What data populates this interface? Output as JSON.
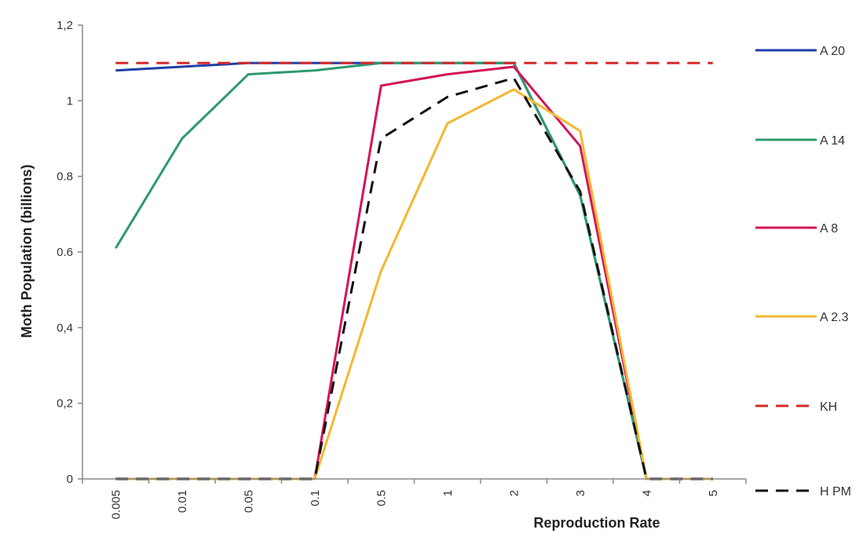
{
  "chart_data": {
    "type": "line",
    "title": "",
    "xlabel": "Reproduction Rate",
    "ylabel": "Moth Population (billions)",
    "categories": [
      "0.005",
      "0.01",
      "0.05",
      "0.1",
      "0.5",
      "1",
      "2",
      "3",
      "4",
      "5"
    ],
    "ylim": [
      0,
      1.2
    ],
    "yticks": [
      "0",
      "0,2",
      "0,4",
      "0.6",
      "0.8",
      "1",
      "1,2"
    ],
    "grid": false,
    "legend_position": "right",
    "series": [
      {
        "name": "A 20",
        "color": "#1f3fa8",
        "dash": "solid",
        "values": [
          1.08,
          1.09,
          1.1,
          1.1,
          1.1,
          1.1,
          1.1,
          0.75,
          0,
          0
        ]
      },
      {
        "name": "A 14",
        "color": "#2e9a6e",
        "dash": "solid",
        "values": [
          0.61,
          0.9,
          1.07,
          1.08,
          1.1,
          1.1,
          1.1,
          0.75,
          0,
          0
        ]
      },
      {
        "name": "A 8",
        "color": "#d4145a",
        "dash": "solid",
        "values": [
          0,
          0,
          0,
          0,
          1.04,
          1.07,
          1.09,
          0.88,
          0,
          0
        ]
      },
      {
        "name": "A 2.3",
        "color": "#f5b731",
        "dash": "solid",
        "values": [
          0,
          0,
          0,
          0,
          0.55,
          0.94,
          1.03,
          0.92,
          0,
          0
        ]
      },
      {
        "name": "KH",
        "color": "#d42a2a",
        "dash": "dashed",
        "values": [
          1.1,
          1.1,
          1.1,
          1.1,
          1.1,
          1.1,
          1.1,
          1.1,
          1.1,
          1.1
        ]
      },
      {
        "name": "H PM",
        "color": "#111111",
        "dash": "dashed",
        "values": [
          0,
          0,
          0,
          0,
          0.9,
          1.01,
          1.06,
          0.76,
          0,
          0
        ]
      }
    ]
  }
}
